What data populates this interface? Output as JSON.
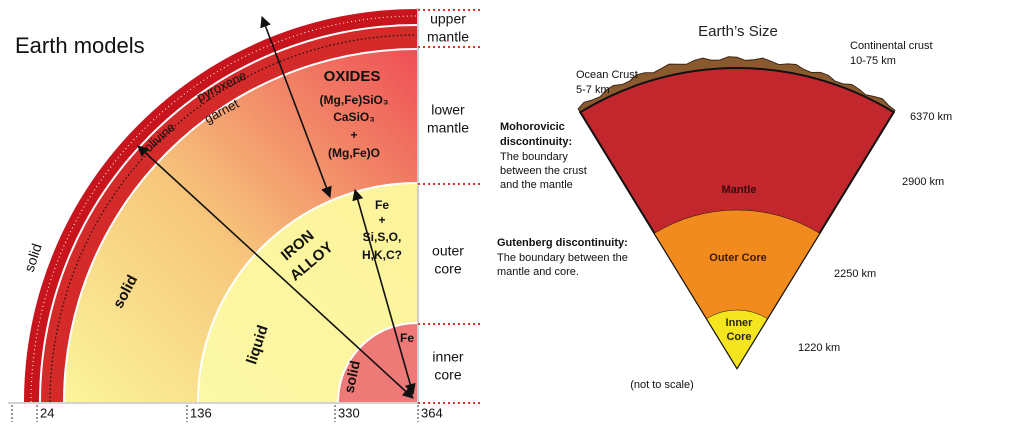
{
  "earth_models": {
    "title": "Earth models",
    "side_labels": [
      [
        "upper",
        "mantle"
      ],
      [
        "lower",
        "mantle"
      ],
      [
        "outer",
        "core"
      ],
      [
        "inner",
        "core"
      ]
    ],
    "depth_ticks": [
      24,
      136,
      330,
      364
    ],
    "crust_label": "solid",
    "minerals": [
      "olivine",
      "pyroxene",
      "garnet"
    ],
    "oxides": [
      "OXIDES",
      "(Mg,Fe)SiO₃",
      "CaSiO₃",
      "+",
      "(Mg,Fe)O"
    ],
    "lower_mantle_label": "solid",
    "outer_core_label": "liquid",
    "iron_alloy": [
      "IRON",
      "ALLOY"
    ],
    "alloy_components": [
      "Fe",
      "+",
      "Si,S,O,",
      "H,K,C?"
    ],
    "inner_core_label": "solid",
    "inner_core_element": "Fe"
  },
  "earths_size": {
    "title": "Earth’s Size",
    "continental_crust": [
      "Continental crust",
      "10-75 km"
    ],
    "ocean_crust": [
      "Ocean Crust",
      "5-7 km"
    ],
    "moho": {
      "heading": [
        "Mohorovicic",
        "discontinuity:"
      ],
      "text": [
        "The boundary",
        "between the crust",
        "and the mantle"
      ]
    },
    "gutenberg": {
      "heading": [
        "Gutenberg discontinuity:"
      ],
      "text": [
        "The boundary between the",
        "mantle and core."
      ]
    },
    "mantle": "Mantle",
    "outer_core": "Outer Core",
    "inner_core": [
      "Inner",
      "Core"
    ],
    "radii": [
      "6370 km",
      "2900 km",
      "2250 km",
      "1220 km"
    ],
    "note": "(not to scale)"
  }
}
